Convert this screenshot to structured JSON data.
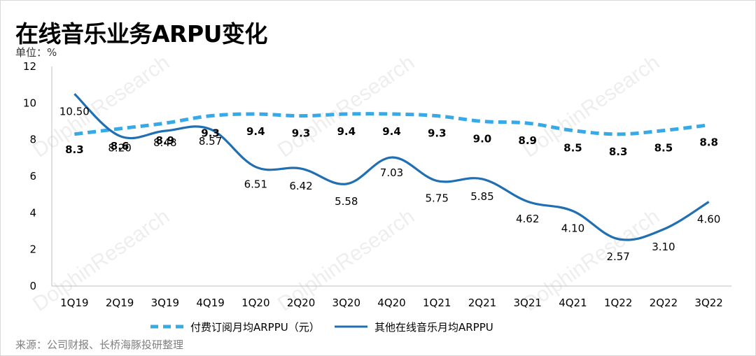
{
  "title": "在线音乐业务ARPU变化",
  "unit": "单位：%",
  "source": "来源：公司财报、长桥海豚投研整理",
  "watermark": "DolphinResearch",
  "chart_data": {
    "type": "line",
    "x": [
      "1Q19",
      "2Q19",
      "3Q19",
      "4Q19",
      "1Q20",
      "2Q20",
      "3Q20",
      "4Q20",
      "1Q21",
      "2Q21",
      "3Q21",
      "4Q21",
      "1Q22",
      "2Q22",
      "3Q22"
    ],
    "ylim": [
      0,
      12
    ],
    "yticks": [
      0,
      2,
      4,
      6,
      8,
      10,
      12
    ],
    "grid": false,
    "legend_position": "bottom",
    "series": [
      {
        "name": "付费订阅月均ARPPU（元）",
        "style": "dashed",
        "color": "#36a9e6",
        "values": [
          8.3,
          8.6,
          8.9,
          9.3,
          9.4,
          9.3,
          9.4,
          9.4,
          9.3,
          9.0,
          8.9,
          8.5,
          8.3,
          8.5,
          8.8
        ],
        "labels": [
          "8.3",
          "8.6",
          "8.9",
          "9.3",
          "9.4",
          "9.3",
          "9.4",
          "9.4",
          "9.3",
          "9.0",
          "8.9",
          "8.5",
          "8.3",
          "8.5",
          "8.8"
        ]
      },
      {
        "name": "其他在线音乐月均ARPPU",
        "style": "solid",
        "color": "#1f6fb2",
        "values": [
          10.5,
          8.2,
          8.48,
          8.57,
          6.51,
          6.42,
          5.58,
          7.03,
          5.75,
          5.85,
          4.62,
          4.1,
          2.57,
          3.1,
          4.6
        ],
        "labels": [
          "10.50",
          "8.20",
          "8.48",
          "8.57",
          "6.51",
          "6.42",
          "5.58",
          "7.03",
          "5.75",
          "5.85",
          "4.62",
          "4.10",
          "2.57",
          "3.10",
          "4.60"
        ]
      }
    ]
  }
}
